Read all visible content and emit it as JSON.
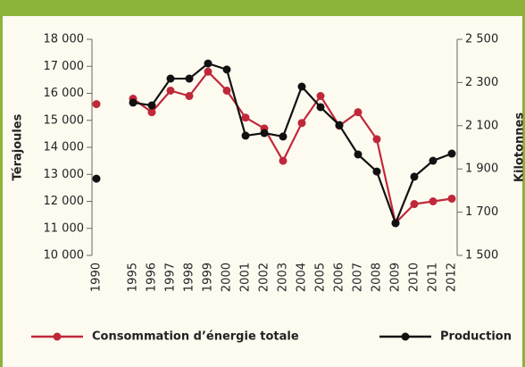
{
  "chart_data": {
    "type": "line",
    "categories": [
      "1990",
      "1995",
      "1996",
      "1997",
      "1998",
      "1999",
      "2000",
      "2001",
      "2002",
      "2003",
      "2004",
      "2005",
      "2006",
      "2007",
      "2008",
      "2009",
      "2010",
      "2011",
      "2012"
    ],
    "ylabel": "Térajoules",
    "y2label": "Kilotonnes",
    "ylim": [
      10000,
      18000
    ],
    "yticks": [
      {
        "value": 10000,
        "label": "10 000"
      },
      {
        "value": 11000,
        "label": "11 000"
      },
      {
        "value": 12000,
        "label": "12 000"
      },
      {
        "value": 13000,
        "label": "13 000"
      },
      {
        "value": 14000,
        "label": "14 000"
      },
      {
        "value": 15000,
        "label": "15 000"
      },
      {
        "value": 16000,
        "label": "16 000"
      },
      {
        "value": 17000,
        "label": "17 000"
      },
      {
        "value": 18000,
        "label": "18 000"
      }
    ],
    "y2lim": [
      1500,
      2500
    ],
    "y2ticks": [
      {
        "value": 1500,
        "label": "1 500"
      },
      {
        "value": 1700,
        "label": "1 700"
      },
      {
        "value": 1900,
        "label": "1 900"
      },
      {
        "value": 2100,
        "label": "2 100"
      },
      {
        "value": 2300,
        "label": "2 300"
      },
      {
        "value": 2500,
        "label": "2 500"
      }
    ],
    "series": [
      {
        "name": "Consommation d’énergie totale",
        "color": "#c0283a",
        "values": [
          15600,
          15800,
          15300,
          16100,
          15900,
          16800,
          16100,
          15100,
          14700,
          13500,
          14900,
          15900,
          14800,
          15300,
          14300,
          11200,
          11900,
          12000,
          12100
        ]
      },
      {
        "name": "Production",
        "color": "#111111",
        "axis": "y2",
        "values": [
          1855,
          2207,
          2194,
          2318,
          2318,
          2388,
          2360,
          2054,
          2066,
          2050,
          2281,
          2186,
          2103,
          1967,
          1888,
          1649,
          1864,
          1938,
          1971
        ]
      }
    ]
  }
}
